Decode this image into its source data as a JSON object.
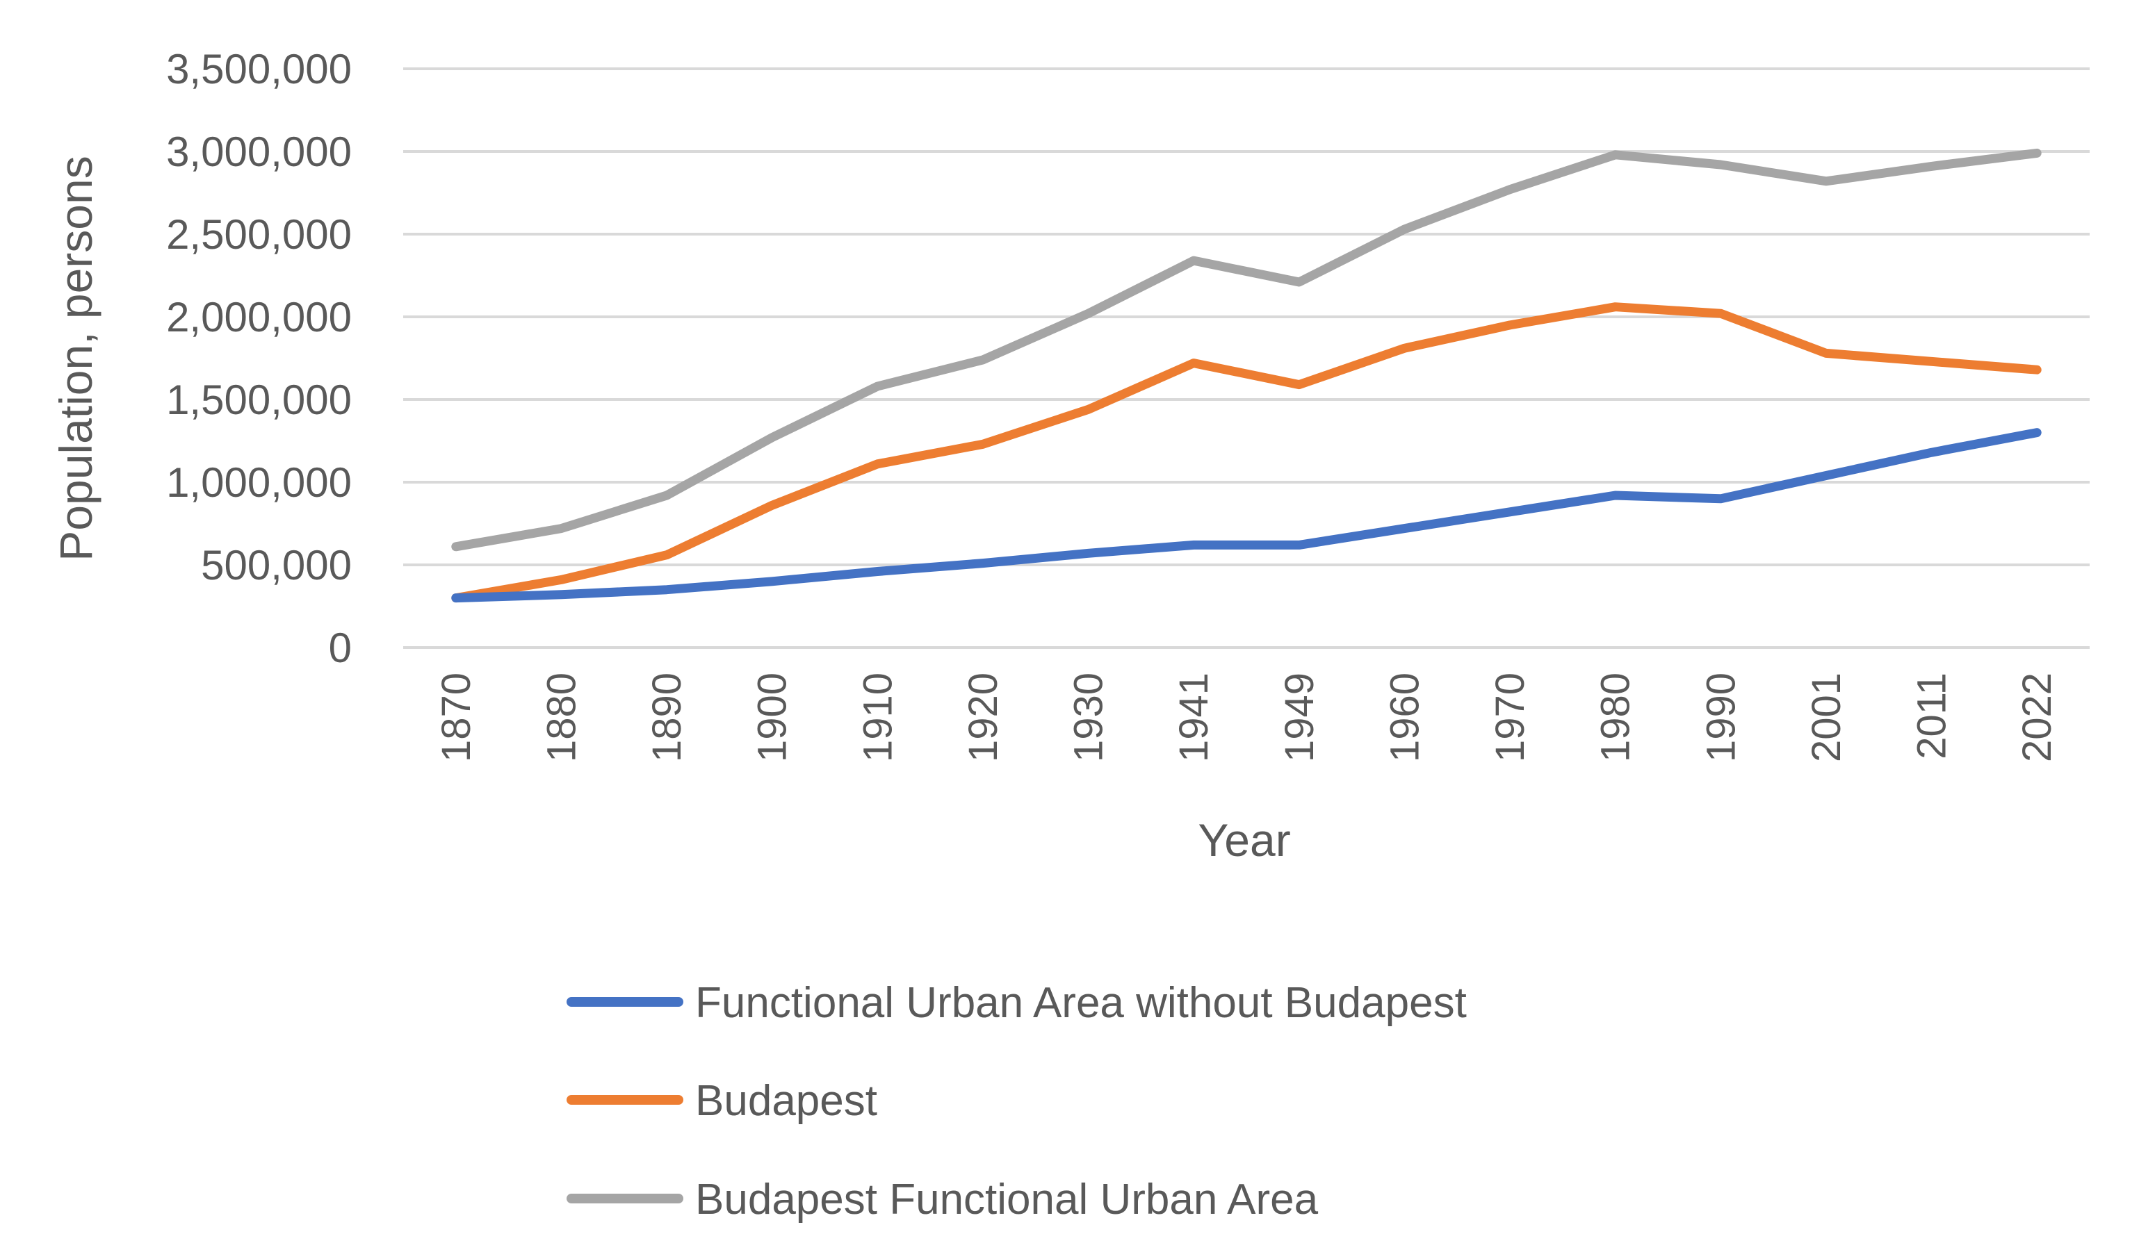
{
  "chart_data": {
    "type": "line",
    "title": "",
    "xlabel": "Year",
    "ylabel": "Population, persons",
    "categories": [
      "1870",
      "1880",
      "1890",
      "1900",
      "1910",
      "1920",
      "1930",
      "1941",
      "1949",
      "1960",
      "1970",
      "1980",
      "1990",
      "2001",
      "2011",
      "2022"
    ],
    "ylim": [
      0,
      3500000
    ],
    "y_ticks": [
      0,
      500000,
      1000000,
      1500000,
      2000000,
      2500000,
      3000000,
      3500000
    ],
    "y_tick_labels": [
      "0",
      "500,000",
      "1,000,000",
      "1,500,000",
      "2,000,000",
      "2,500,000",
      "3,000,000",
      "3,500,000"
    ],
    "grid": "horizontal",
    "legend_position": "bottom",
    "series": [
      {
        "name": "Functional Urban Area without Budapest",
        "color": "#4472C4",
        "values": [
          300000,
          320000,
          350000,
          400000,
          460000,
          510000,
          570000,
          620000,
          620000,
          720000,
          820000,
          920000,
          900000,
          1040000,
          1180000,
          1300000
        ]
      },
      {
        "name": "Budapest",
        "color": "#ED7D31",
        "values": [
          300000,
          410000,
          560000,
          860000,
          1110000,
          1230000,
          1440000,
          1720000,
          1590000,
          1810000,
          1950000,
          2060000,
          2020000,
          1780000,
          1730000,
          1680000
        ]
      },
      {
        "name": "Budapest Functional Urban Area",
        "color": "#A5A5A5",
        "values": [
          610000,
          720000,
          920000,
          1270000,
          1580000,
          1740000,
          2020000,
          2340000,
          2210000,
          2530000,
          2770000,
          2980000,
          2920000,
          2820000,
          2910000,
          2990000
        ]
      }
    ]
  }
}
